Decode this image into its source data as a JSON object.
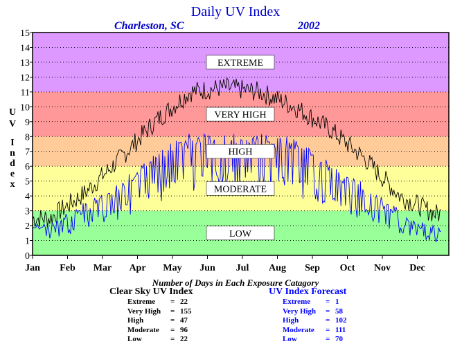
{
  "title": "Daily UV Index",
  "location": "Charleston, SC",
  "year": "2002",
  "colors": {
    "title": "#0000cc",
    "clear_sky_line": "#000000",
    "forecast_line": "#0000ff",
    "band_low": "#99ff99",
    "band_moderate": "#ffff99",
    "band_high": "#ffcc99",
    "band_very_high": "#ff9999",
    "band_extreme": "#dd99ff"
  },
  "chart_data": {
    "type": "line",
    "title": "Daily UV Index",
    "ylabel": "UV Index",
    "xlabel": "",
    "ylim": [
      0,
      15
    ],
    "yticks": [
      "0",
      "1",
      "2",
      "3",
      "4",
      "5",
      "6",
      "7",
      "8",
      "9",
      "10",
      "11",
      "12",
      "13",
      "14",
      "15"
    ],
    "x_categories": [
      "Jan",
      "Feb",
      "Mar",
      "Apr",
      "May",
      "Jun",
      "Jul",
      "Aug",
      "Sep",
      "Oct",
      "Nov",
      "Dec"
    ],
    "grid": true,
    "bands": [
      {
        "label": "LOW",
        "from": 0,
        "to": 3,
        "color": "#99ff99"
      },
      {
        "label": "MODERATE",
        "from": 3,
        "to": 6,
        "color": "#ffff99"
      },
      {
        "label": "HIGH",
        "from": 6,
        "to": 8,
        "color": "#ffcc99"
      },
      {
        "label": "VERY HIGH",
        "from": 8,
        "to": 11,
        "color": "#ff9999"
      },
      {
        "label": "EXTREME",
        "from": 11,
        "to": 15,
        "color": "#dd99ff"
      }
    ],
    "series": [
      {
        "color": "#000000",
        "monthly_values": [
          2.5,
          4.2,
          6.5,
          9.0,
          11.0,
          11.3,
          11.0,
          10.0,
          8.5,
          6.5,
          4.0,
          2.8
        ]
      },
      {
        "color": "#0000ff",
        "monthly_values": [
          2.0,
          3.3,
          4.8,
          6.8,
          8.2,
          8.0,
          8.0,
          7.8,
          6.0,
          4.6,
          2.9,
          1.8
        ]
      }
    ]
  },
  "stats": {
    "heading": "Number of Days in Each Exposure Catagory",
    "clear_sky": {
      "title": "Clear Sky UV Index",
      "rows": [
        {
          "label": "Extreme",
          "value": "22"
        },
        {
          "label": "Very High",
          "value": "155"
        },
        {
          "label": "High",
          "value": "47"
        },
        {
          "label": "Moderate",
          "value": "96"
        },
        {
          "label": "Low",
          "value": "22"
        }
      ]
    },
    "forecast": {
      "title": "UV Index Forecast",
      "rows": [
        {
          "label": "Extreme",
          "value": "1"
        },
        {
          "label": "Very High",
          "value": "58"
        },
        {
          "label": "High",
          "value": "102"
        },
        {
          "label": "Moderate",
          "value": "111"
        },
        {
          "label": "Low",
          "value": "70"
        }
      ]
    }
  }
}
